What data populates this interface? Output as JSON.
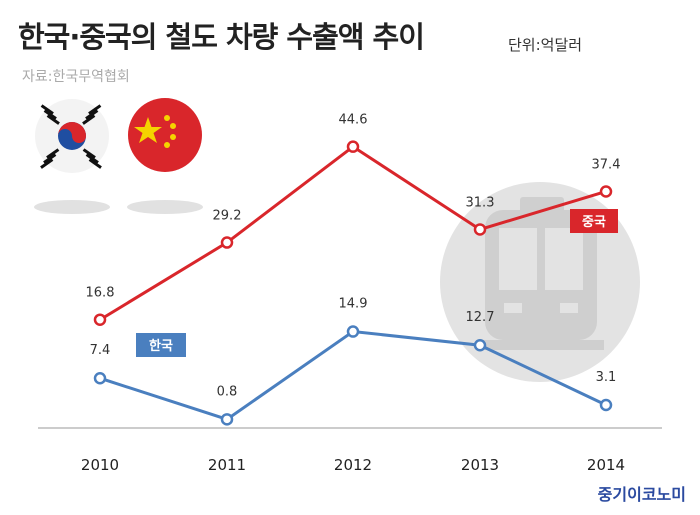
{
  "title": "한국·중국의 철도 차량 수출액 추이",
  "unit": "단위:억달러",
  "source": "자료:한국무역협회",
  "brand": "중기이코노미",
  "colors": {
    "china": "#d9262b",
    "korea": "#4a7fbf"
  },
  "icons": [
    "korea-flag-icon",
    "china-flag-icon",
    "train-icon"
  ],
  "chart_data": {
    "type": "line",
    "x": [
      "2010",
      "2011",
      "2012",
      "2013",
      "2014"
    ],
    "series": [
      {
        "name": "중국",
        "values": [
          16.8,
          29.2,
          44.6,
          31.3,
          37.4
        ]
      },
      {
        "name": "한국",
        "values": [
          7.4,
          0.8,
          14.9,
          12.7,
          3.1
        ]
      }
    ],
    "data_labels": {
      "중국": [
        "16.8",
        "29.2",
        "44.6",
        "31.3",
        "37.4"
      ],
      "한국": [
        "7.4",
        "0.8",
        "14.9",
        "12.7",
        "3.1"
      ]
    },
    "grid": false
  }
}
